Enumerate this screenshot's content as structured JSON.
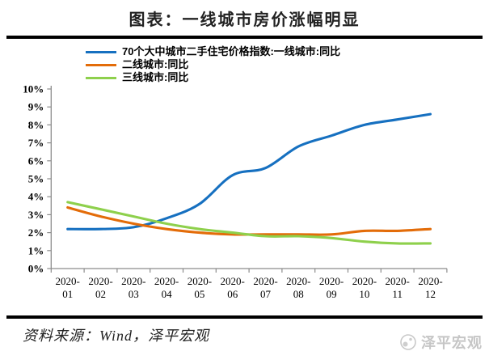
{
  "page": {
    "title": "图表：一线城市房价涨幅明显"
  },
  "footer": {
    "source": "资料来源：Wind，泽平宏观",
    "watermark": "泽平宏观"
  },
  "chart_data": {
    "type": "line",
    "title": "图表：一线城市房价涨幅明显",
    "categories": [
      "2020-01",
      "2020-02",
      "2020-03",
      "2020-04",
      "2020-05",
      "2020-06",
      "2020-07",
      "2020-08",
      "2020-09",
      "2020-10",
      "2020-11",
      "2020-12"
    ],
    "series": [
      {
        "name": "70个大中城市二手住宅价格指数:一线城市:同比",
        "color": "#1670C0",
        "values": [
          2.2,
          2.2,
          2.3,
          2.8,
          3.6,
          5.2,
          5.6,
          6.8,
          7.4,
          8.0,
          8.3,
          8.6
        ]
      },
      {
        "name": "二线城市:同比",
        "color": "#E36C09",
        "values": [
          3.4,
          2.9,
          2.5,
          2.2,
          2.0,
          1.9,
          1.9,
          1.9,
          1.9,
          2.1,
          2.1,
          2.2
        ]
      },
      {
        "name": "三线城市:同比",
        "color": "#8ED04C",
        "values": [
          3.7,
          3.3,
          2.9,
          2.5,
          2.2,
          2.0,
          1.8,
          1.8,
          1.7,
          1.5,
          1.4,
          1.4
        ]
      }
    ],
    "ylabel": "",
    "xlabel": "",
    "ylim": [
      0,
      10
    ],
    "y_tick_labels": [
      "0%",
      "1%",
      "2%",
      "3%",
      "4%",
      "5%",
      "6%",
      "7%",
      "8%",
      "9%",
      "10%"
    ],
    "grid": false,
    "legend_position": "top",
    "axis_color": "#8C8C8C"
  }
}
